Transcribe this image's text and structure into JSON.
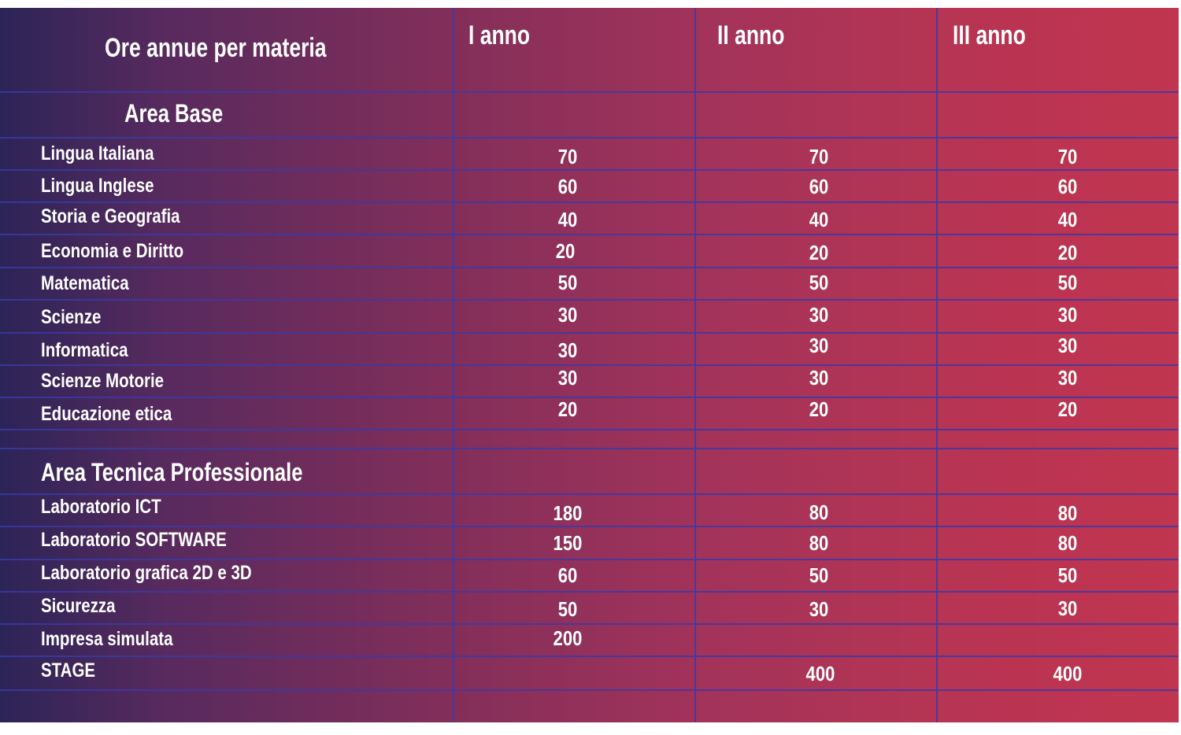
{
  "table": {
    "header": {
      "subject_col": "Ore annue per materia",
      "years": [
        "I anno",
        "II anno",
        "III anno"
      ]
    },
    "sections": [
      {
        "title": "Area Base",
        "rows": [
          {
            "subject": "Lingua Italiana",
            "hours": [
              "70",
              "70",
              "70"
            ]
          },
          {
            "subject": "Lingua Inglese",
            "hours": [
              "60",
              "60",
              "60"
            ]
          },
          {
            "subject": "Storia e Geografia",
            "hours": [
              "40",
              "40",
              "40"
            ]
          },
          {
            "subject": "Economia e Diritto",
            "hours": [
              "20",
              "20",
              "20"
            ]
          },
          {
            "subject": "Matematica",
            "hours": [
              "50",
              "50",
              "50"
            ]
          },
          {
            "subject": "Scienze",
            "hours": [
              "30",
              "30",
              "30"
            ]
          },
          {
            "subject": "Informatica",
            "hours": [
              "30",
              "30",
              "30"
            ]
          },
          {
            "subject": "Scienze Motorie",
            "hours": [
              "30",
              "30",
              "30"
            ]
          },
          {
            "subject": "Educazione etica",
            "hours": [
              "20",
              "20",
              "20"
            ]
          }
        ]
      },
      {
        "title": "Area Tecnica Professionale",
        "rows": [
          {
            "subject": "Laboratorio ICT",
            "hours": [
              "180",
              "80",
              "80"
            ]
          },
          {
            "subject": "Laboratorio SOFTWARE",
            "hours": [
              "150",
              "80",
              "80"
            ]
          },
          {
            "subject": "Laboratorio grafica 2D e 3D",
            "hours": [
              "60",
              "50",
              "50"
            ]
          },
          {
            "subject": "Sicurezza",
            "hours": [
              "50",
              "30",
              "30"
            ]
          },
          {
            "subject": "Impresa simulata",
            "hours": [
              "200",
              "",
              ""
            ]
          },
          {
            "subject": "STAGE",
            "hours": [
              "",
              "400",
              "400"
            ]
          }
        ]
      }
    ]
  }
}
